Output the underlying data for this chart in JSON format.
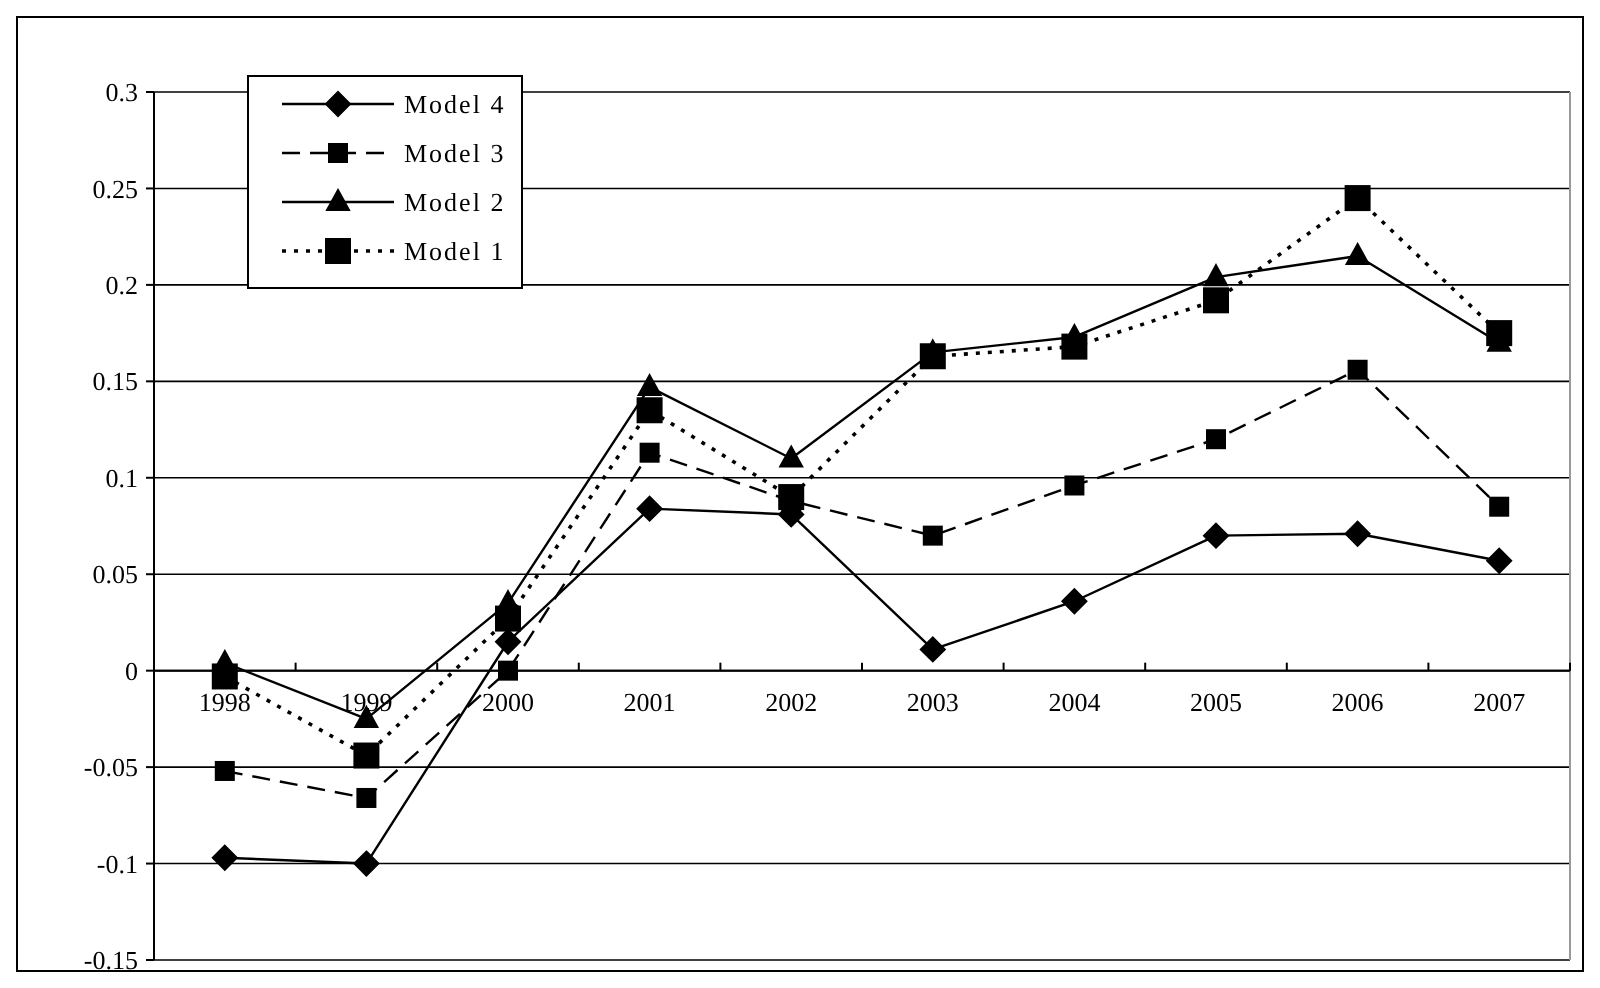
{
  "chart_data": {
    "type": "line",
    "categories": [
      "1998",
      "1999",
      "2000",
      "2001",
      "2002",
      "2003",
      "2004",
      "2005",
      "2006",
      "2007"
    ],
    "ylim": [
      -0.15,
      0.3
    ],
    "yticks": [
      -0.15,
      -0.1,
      -0.05,
      0,
      0.05,
      0.1,
      0.15,
      0.2,
      0.25,
      0.3
    ],
    "grid": "y",
    "legend": "top left",
    "series": [
      {
        "name": "Model 4",
        "color": "#000000",
        "marker": "diamond",
        "line_style": "solid",
        "values": [
          -0.097,
          -0.1,
          0.015,
          0.084,
          0.081,
          0.011,
          0.036,
          0.07,
          0.071,
          0.057
        ]
      },
      {
        "name": "Model 3",
        "color": "#000000",
        "marker": "square",
        "line_style": "dashed",
        "values": [
          -0.052,
          -0.066,
          0.0,
          0.113,
          0.088,
          0.07,
          0.096,
          0.12,
          0.156,
          0.085
        ]
      },
      {
        "name": "Model 2",
        "color": "#000000",
        "marker": "triangle",
        "line_style": "solid",
        "values": [
          0.004,
          -0.025,
          0.035,
          0.147,
          0.11,
          0.165,
          0.173,
          0.204,
          0.215,
          0.17
        ]
      },
      {
        "name": "Model 1",
        "color": "#000000",
        "marker": "square",
        "line_style": "dotted",
        "values": [
          -0.003,
          -0.044,
          0.027,
          0.135,
          0.09,
          0.163,
          0.168,
          0.192,
          0.245,
          0.175
        ]
      }
    ]
  }
}
